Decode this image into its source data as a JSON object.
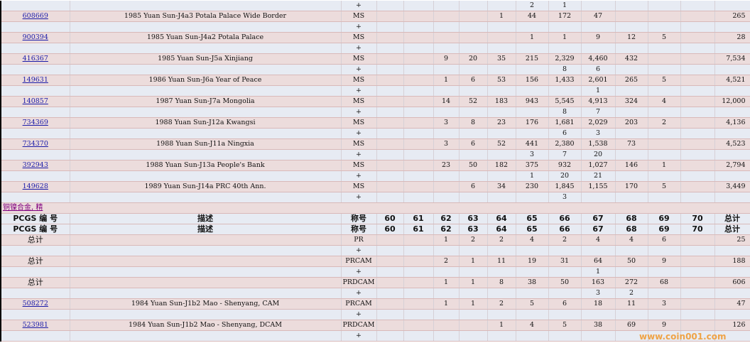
{
  "columns": {
    "pcgs": "PCGS 编 号",
    "desc": "描述",
    "designation": "称号",
    "grades": [
      "60",
      "61",
      "62",
      "63",
      "64",
      "65",
      "66",
      "67",
      "68",
      "69",
      "70"
    ],
    "total": "总计"
  },
  "rows_top": [
    {
      "type": "plus",
      "des": "+",
      "g": [
        "",
        "",
        "",
        "",
        "",
        "2",
        "1",
        "",
        "",
        "",
        ""
      ],
      "total": ""
    },
    {
      "type": "ms",
      "pcgs": "608669",
      "desc": "1985 Yuan Sun-J4a3 Potala Palace Wide Border",
      "des": "MS",
      "g": [
        "",
        "",
        "",
        "",
        "1",
        "44",
        "172",
        "47",
        "",
        "",
        ""
      ],
      "total": "265"
    },
    {
      "type": "plus",
      "des": "+",
      "g": [
        "",
        "",
        "",
        "",
        "",
        "",
        "",
        "",
        "",
        "",
        ""
      ],
      "total": ""
    },
    {
      "type": "ms",
      "pcgs": "900394",
      "desc": "1985 Yuan Sun-J4a2 Potala Palace",
      "des": "MS",
      "g": [
        "",
        "",
        "",
        "",
        "",
        "1",
        "1",
        "9",
        "12",
        "5",
        ""
      ],
      "total": "28"
    },
    {
      "type": "plus",
      "des": "+",
      "g": [
        "",
        "",
        "",
        "",
        "",
        "",
        "",
        "",
        "",
        "",
        ""
      ],
      "total": ""
    },
    {
      "type": "ms",
      "pcgs": "416367",
      "desc": "1985 Yuan Sun-J5a Xinjiang",
      "des": "MS",
      "g": [
        "",
        "",
        "9",
        "20",
        "35",
        "215",
        "2,329",
        "4,460",
        "432",
        "",
        ""
      ],
      "total": "7,534"
    },
    {
      "type": "plus",
      "des": "+",
      "g": [
        "",
        "",
        "",
        "",
        "",
        "",
        "8",
        "6",
        "",
        "",
        ""
      ],
      "total": ""
    },
    {
      "type": "ms",
      "pcgs": "149631",
      "desc": "1986 Yuan Sun-J6a Year of Peace",
      "des": "MS",
      "g": [
        "",
        "",
        "1",
        "6",
        "53",
        "156",
        "1,433",
        "2,601",
        "265",
        "5",
        ""
      ],
      "total": "4,521"
    },
    {
      "type": "plus",
      "des": "+",
      "g": [
        "",
        "",
        "",
        "",
        "",
        "",
        "",
        "1",
        "",
        "",
        ""
      ],
      "total": ""
    },
    {
      "type": "ms",
      "pcgs": "140857",
      "desc": "1987 Yuan Sun-J7a Mongolia",
      "des": "MS",
      "g": [
        "",
        "",
        "14",
        "52",
        "183",
        "943",
        "5,545",
        "4,913",
        "324",
        "4",
        ""
      ],
      "total": "12,000"
    },
    {
      "type": "plus",
      "des": "+",
      "g": [
        "",
        "",
        "",
        "",
        "",
        "",
        "8",
        "7",
        "",
        "",
        ""
      ],
      "total": ""
    },
    {
      "type": "ms",
      "pcgs": "734369",
      "desc": "1988 Yuan Sun-J12a Kwangsi",
      "des": "MS",
      "g": [
        "",
        "",
        "3",
        "8",
        "23",
        "176",
        "1,681",
        "2,029",
        "203",
        "2",
        ""
      ],
      "total": "4,136"
    },
    {
      "type": "plus",
      "des": "+",
      "g": [
        "",
        "",
        "",
        "",
        "",
        "",
        "6",
        "3",
        "",
        "",
        ""
      ],
      "total": ""
    },
    {
      "type": "ms",
      "pcgs": "734370",
      "desc": "1988 Yuan Sun-J11a Ningxia",
      "des": "MS",
      "g": [
        "",
        "",
        "3",
        "6",
        "52",
        "441",
        "2,380",
        "1,538",
        "73",
        "",
        ""
      ],
      "total": "4,523"
    },
    {
      "type": "plus",
      "des": "+",
      "g": [
        "",
        "",
        "",
        "",
        "",
        "3",
        "7",
        "20",
        "",
        "",
        ""
      ],
      "total": ""
    },
    {
      "type": "ms",
      "pcgs": "392943",
      "desc": "1988 Yuan Sun-J13a People's Bank",
      "des": "MS",
      "g": [
        "",
        "",
        "23",
        "50",
        "182",
        "375",
        "932",
        "1,027",
        "146",
        "1",
        ""
      ],
      "total": "2,794"
    },
    {
      "type": "plus",
      "des": "+",
      "g": [
        "",
        "",
        "",
        "",
        "",
        "1",
        "20",
        "21",
        "",
        "",
        ""
      ],
      "total": ""
    },
    {
      "type": "ms",
      "pcgs": "149628",
      "desc": "1989 Yuan Sun-J14a PRC 40th Ann.",
      "des": "MS",
      "g": [
        "",
        "",
        "",
        "6",
        "34",
        "230",
        "1,845",
        "1,155",
        "170",
        "5",
        ""
      ],
      "total": "3,449"
    },
    {
      "type": "plus",
      "des": "+",
      "g": [
        "",
        "",
        "",
        "",
        "",
        "",
        "3",
        "",
        "",
        "",
        ""
      ],
      "total": ""
    }
  ],
  "section_label": "铜镍合金, 精",
  "rows_bottom": [
    {
      "type": "ms",
      "pcgs_text": "总计",
      "des": "PR",
      "g": [
        "",
        "",
        "1",
        "2",
        "2",
        "4",
        "2",
        "4",
        "4",
        "6",
        ""
      ],
      "total": "25"
    },
    {
      "type": "plus",
      "des": "+",
      "g": [
        "",
        "",
        "",
        "",
        "",
        "",
        "",
        "",
        "",
        "",
        ""
      ],
      "total": ""
    },
    {
      "type": "ms",
      "pcgs_text": "总计",
      "des": "PRCAM",
      "g": [
        "",
        "",
        "2",
        "1",
        "11",
        "19",
        "31",
        "64",
        "50",
        "9",
        ""
      ],
      "total": "188"
    },
    {
      "type": "plus",
      "des": "+",
      "g": [
        "",
        "",
        "",
        "",
        "",
        "",
        "",
        "1",
        "",
        "",
        ""
      ],
      "total": ""
    },
    {
      "type": "ms",
      "pcgs_text": "总计",
      "des": "PRDCAM",
      "g": [
        "",
        "",
        "1",
        "1",
        "8",
        "38",
        "50",
        "163",
        "272",
        "68",
        ""
      ],
      "total": "606"
    },
    {
      "type": "plus",
      "des": "+",
      "g": [
        "",
        "",
        "",
        "",
        "",
        "",
        "",
        "3",
        "2",
        "",
        ""
      ],
      "total": ""
    },
    {
      "type": "ms",
      "pcgs": "508272",
      "desc": "1984 Yuan Sun-J1b2 Mao - Shenyang, CAM",
      "des": "PRCAM",
      "g": [
        "",
        "",
        "1",
        "1",
        "2",
        "5",
        "6",
        "18",
        "11",
        "3",
        ""
      ],
      "total": "47"
    },
    {
      "type": "plus",
      "des": "+",
      "g": [
        "",
        "",
        "",
        "",
        "",
        "",
        "",
        "",
        "",
        "",
        ""
      ],
      "total": ""
    },
    {
      "type": "ms",
      "pcgs": "523981",
      "desc": "1984 Yuan Sun-J1b2 Mao - Shenyang, DCAM",
      "des": "PRDCAM",
      "g": [
        "",
        "",
        "",
        "",
        "1",
        "4",
        "5",
        "38",
        "69",
        "9",
        ""
      ],
      "total": "126"
    },
    {
      "type": "plus",
      "des": "+",
      "g": [
        "",
        "",
        "",
        "",
        "",
        "",
        "",
        "",
        "",
        "",
        ""
      ],
      "total": ""
    }
  ],
  "watermark": "www.coin001.com"
}
